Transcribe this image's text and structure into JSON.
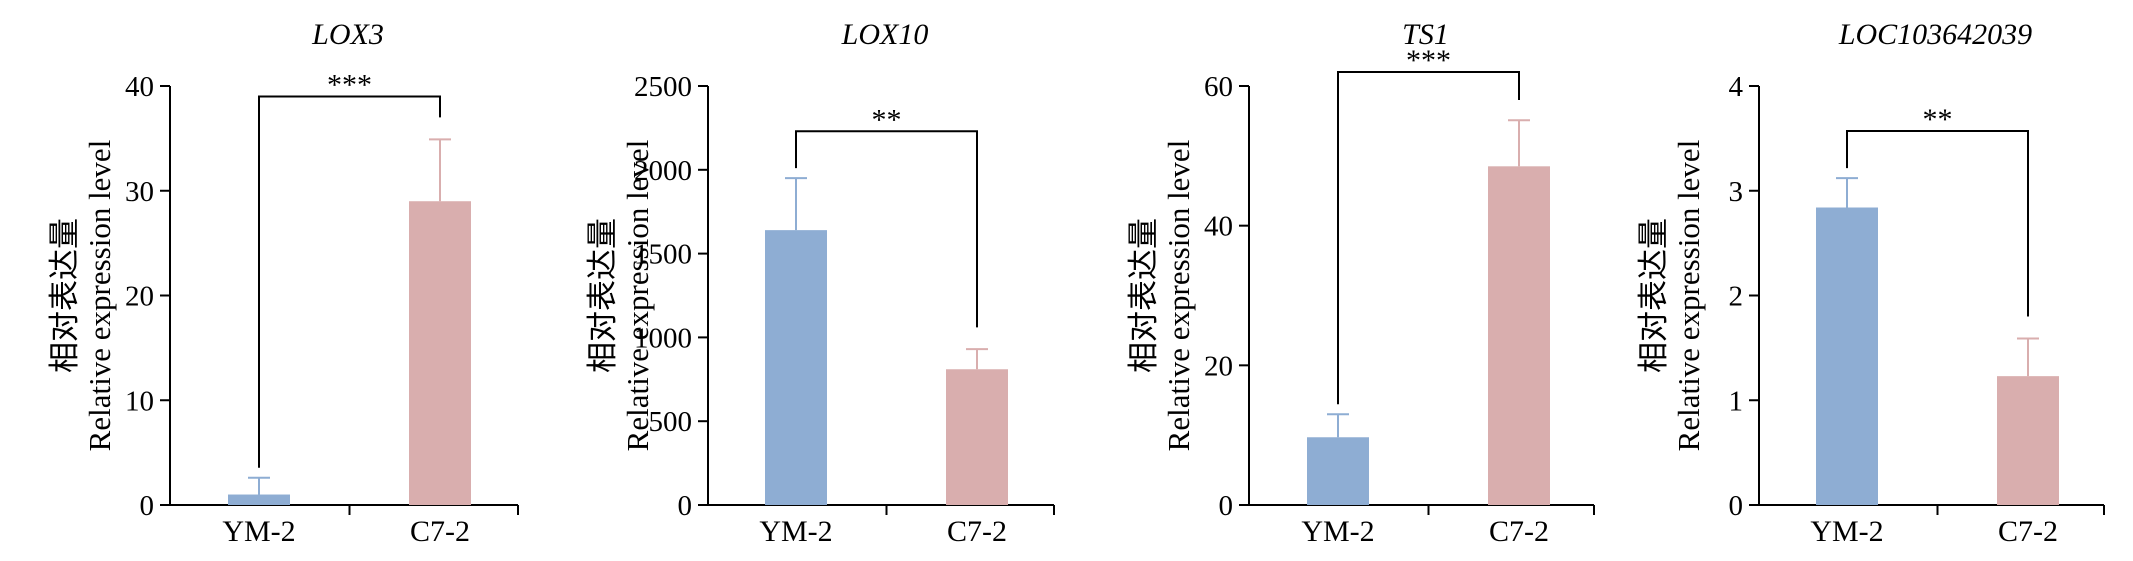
{
  "figure_label": "",
  "chart_data": [
    {
      "type": "bar",
      "title": "LOX3",
      "ylabel_zh": "相对表达量",
      "ylabel_en": "Relative expression level",
      "categories": [
        "YM-2",
        "C7-2"
      ],
      "values": [
        1.0,
        29.0
      ],
      "errors": [
        1.6,
        5.9
      ],
      "colors": [
        "#8eadd3",
        "#d9aeae"
      ],
      "ylim": [
        0,
        40
      ],
      "yticks": [
        0,
        10,
        20,
        30,
        40
      ],
      "significance": "***",
      "bracket_y": 39,
      "right_arm_to": 37
    },
    {
      "type": "bar",
      "title": "LOX10",
      "ylabel_zh": "相对表达量",
      "ylabel_en": "Relative expression level",
      "categories": [
        "YM-2",
        "C7-2"
      ],
      "values": [
        1640,
        810
      ],
      "errors": [
        310,
        120
      ],
      "colors": [
        "#8eadd3",
        "#d9aeae"
      ],
      "ylim": [
        0,
        2500
      ],
      "yticks": [
        0,
        500,
        1000,
        1500,
        2000,
        2500
      ],
      "significance": "**",
      "bracket_y": 2230,
      "right_arm_to": 1060
    },
    {
      "type": "bar",
      "title": "TS1",
      "ylabel_zh": "相对表达量",
      "ylabel_en": "Relative expression level",
      "categories": [
        "YM-2",
        "C7-2"
      ],
      "values": [
        9.7,
        48.5
      ],
      "errors": [
        3.3,
        6.6
      ],
      "colors": [
        "#8eadd3",
        "#d9aeae"
      ],
      "ylim": [
        0,
        60
      ],
      "yticks": [
        0,
        20,
        40,
        60
      ],
      "significance": "***",
      "bracket_y": 62,
      "right_arm_to": 58
    },
    {
      "type": "bar",
      "title": "LOC103642039",
      "ylabel_zh": "相对表达量",
      "ylabel_en": "Relative expression level",
      "categories": [
        "YM-2",
        "C7-2"
      ],
      "values": [
        2.84,
        1.23
      ],
      "errors": [
        0.28,
        0.36
      ],
      "colors": [
        "#8eadd3",
        "#d9aeae"
      ],
      "ylim": [
        0,
        4
      ],
      "yticks": [
        0,
        1,
        2,
        3,
        4
      ],
      "significance": "**",
      "bracket_y": 3.57,
      "right_arm_to": 1.8
    }
  ]
}
